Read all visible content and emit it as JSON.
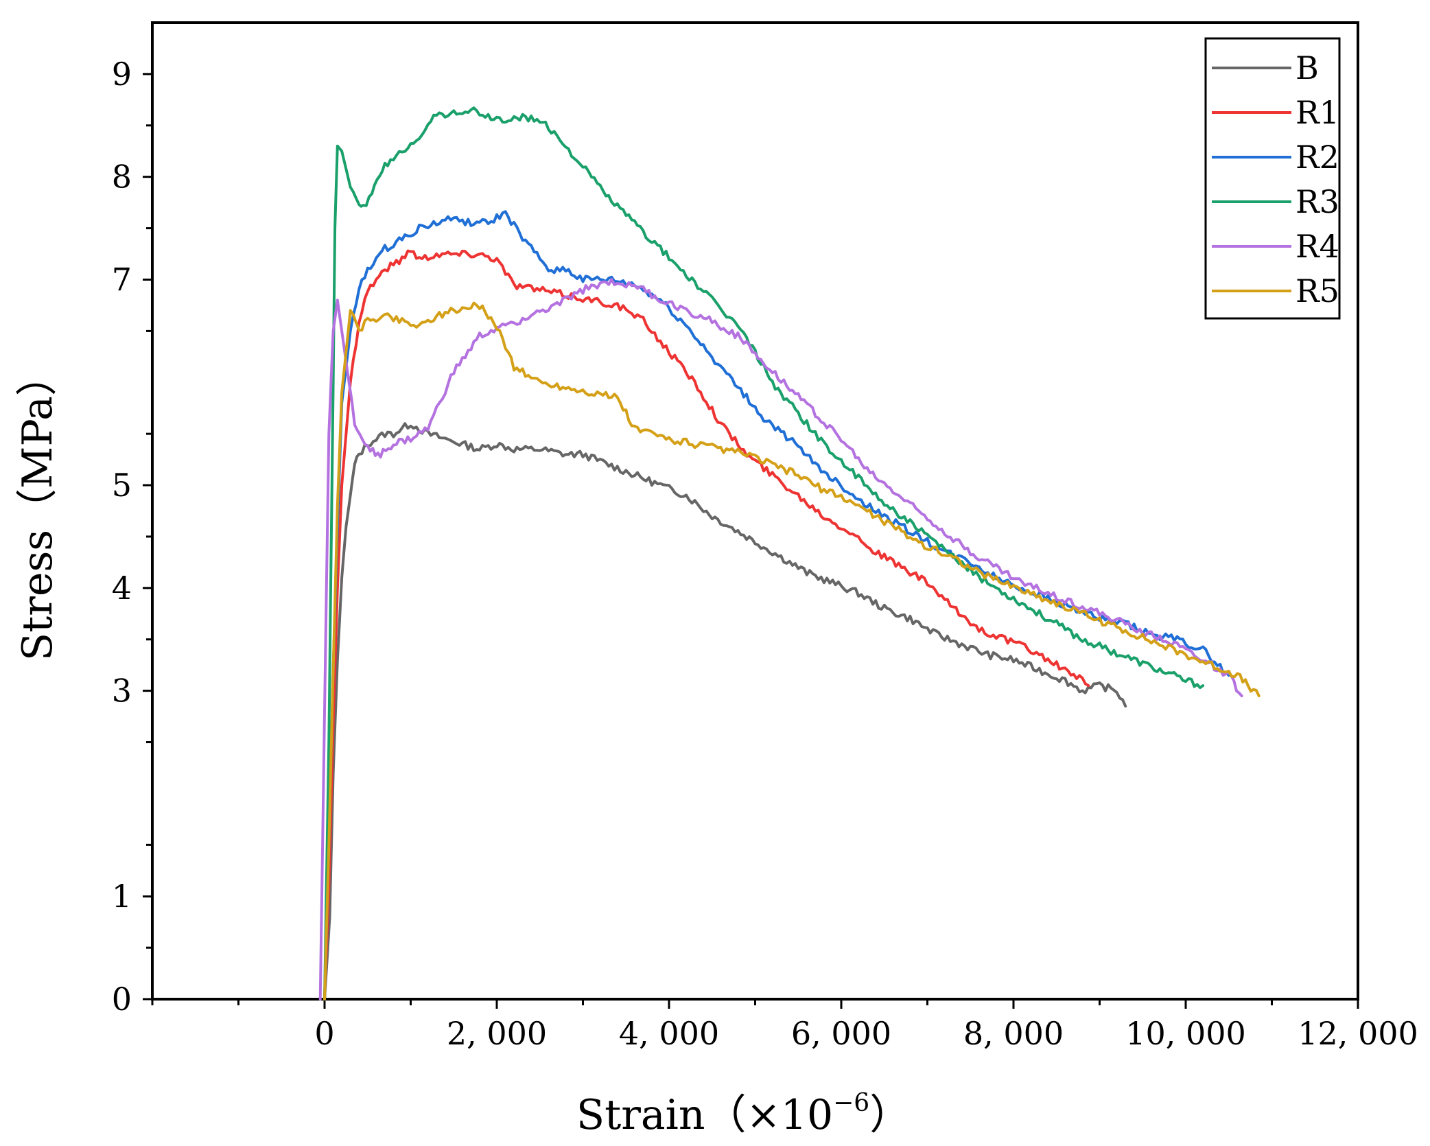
{
  "chart_data": {
    "type": "line",
    "title": "",
    "xlabel_main": "Strain",
    "xlabel_unit": "（×10",
    "xlabel_exp": "−6",
    "xlabel_close": "）",
    "ylabel": "Stress（MPa）",
    "xlim": [
      -2000,
      12000
    ],
    "ylim": [
      0,
      9.5
    ],
    "x_ticks": [
      0,
      2000,
      4000,
      6000,
      8000,
      10000,
      12000
    ],
    "x_tick_labels": [
      "0",
      "2, 000",
      "4, 000",
      "6, 000",
      "8, 000",
      "10, 000",
      "12, 000"
    ],
    "y_ticks": [
      0,
      1,
      3,
      4,
      5,
      7,
      8,
      9
    ],
    "y_tick_labels": [
      "0",
      "1",
      "3",
      "4",
      "5",
      "7",
      "8",
      "9"
    ],
    "legend_position": "top-right",
    "grid": false,
    "series": [
      {
        "name": "B",
        "color": "#666666",
        "x": [
          0,
          60,
          100,
          150,
          200,
          250,
          300,
          350,
          400,
          500,
          600,
          700,
          800,
          900,
          1000,
          1200,
          1400,
          1600,
          1800,
          2000,
          2200,
          2500,
          2800,
          3000,
          3300,
          3600,
          3900,
          4200,
          4500,
          4800,
          5000,
          5300,
          5600,
          5900,
          6200,
          6500,
          6800,
          7100,
          7400,
          7700,
          8000,
          8300,
          8600,
          8800,
          9000,
          9200,
          9300
        ],
        "y": [
          0,
          0.8,
          2.2,
          3.3,
          4.1,
          4.6,
          4.9,
          5.2,
          5.3,
          5.4,
          5.45,
          5.5,
          5.5,
          5.55,
          5.6,
          5.5,
          5.45,
          5.4,
          5.35,
          5.4,
          5.35,
          5.35,
          5.3,
          5.3,
          5.2,
          5.1,
          5.0,
          4.9,
          4.7,
          4.55,
          4.45,
          4.3,
          4.15,
          4.05,
          3.95,
          3.8,
          3.7,
          3.55,
          3.45,
          3.35,
          3.3,
          3.2,
          3.1,
          3.0,
          3.05,
          3.0,
          2.85
        ]
      },
      {
        "name": "R1",
        "color": "#ee3333",
        "x": [
          0,
          50,
          100,
          150,
          200,
          300,
          400,
          500,
          700,
          900,
          1000,
          1100,
          1300,
          1500,
          1800,
          2000,
          2200,
          2500,
          2800,
          3100,
          3400,
          3700,
          4000,
          4300,
          4600,
          4900,
          5200,
          5500,
          5800,
          6100,
          6400,
          6700,
          7000,
          7300,
          7600,
          7900,
          8200,
          8500,
          8800,
          8870
        ],
        "y": [
          0,
          1.1,
          2.7,
          4.0,
          5.0,
          6.0,
          6.6,
          6.9,
          7.1,
          7.2,
          7.3,
          7.2,
          7.25,
          7.25,
          7.25,
          7.2,
          6.95,
          6.9,
          6.85,
          6.8,
          6.75,
          6.6,
          6.3,
          6.0,
          5.6,
          5.3,
          5.1,
          4.9,
          4.7,
          4.55,
          4.35,
          4.2,
          4.05,
          3.8,
          3.6,
          3.5,
          3.4,
          3.25,
          3.1,
          3.05
        ]
      },
      {
        "name": "R2",
        "color": "#1f6fd6",
        "x": [
          0,
          50,
          100,
          150,
          200,
          300,
          400,
          500,
          700,
          900,
          1100,
          1300,
          1500,
          1700,
          1900,
          2100,
          2300,
          2500,
          2600,
          2800,
          3000,
          3300,
          3600,
          3900,
          4200,
          4500,
          4800,
          5100,
          5400,
          5700,
          6000,
          6300,
          6600,
          6900,
          7200,
          7500,
          7800,
          8100,
          8400,
          8700,
          9000,
          9300,
          9600,
          9900,
          10200,
          10500
        ],
        "y": [
          0,
          1.5,
          3.2,
          4.6,
          5.8,
          6.5,
          6.9,
          7.1,
          7.3,
          7.4,
          7.5,
          7.55,
          7.6,
          7.55,
          7.55,
          7.65,
          7.4,
          7.2,
          7.1,
          7.1,
          7.0,
          7.0,
          6.95,
          6.8,
          6.55,
          6.25,
          5.95,
          5.65,
          5.45,
          5.2,
          5.0,
          4.8,
          4.65,
          4.5,
          4.35,
          4.25,
          4.1,
          4.0,
          3.9,
          3.8,
          3.7,
          3.65,
          3.55,
          3.5,
          3.4,
          3.15
        ]
      },
      {
        "name": "R3",
        "color": "#1aa06a",
        "x": [
          0,
          50,
          100,
          120,
          150,
          200,
          300,
          400,
          450,
          550,
          700,
          900,
          1100,
          1300,
          1500,
          1700,
          1900,
          2100,
          2300,
          2500,
          2700,
          2900,
          3100,
          3300,
          3600,
          3900,
          4200,
          4500,
          4800,
          5000,
          5200,
          5500,
          5800,
          6100,
          6400,
          6700,
          7000,
          7300,
          7600,
          7900,
          8200,
          8500,
          8800,
          9100,
          9400,
          9700,
          10000,
          10200
        ],
        "y": [
          0,
          2.5,
          6.0,
          7.5,
          8.3,
          8.25,
          7.9,
          7.7,
          7.7,
          7.85,
          8.1,
          8.25,
          8.4,
          8.6,
          8.62,
          8.65,
          8.58,
          8.55,
          8.58,
          8.55,
          8.4,
          8.2,
          8.0,
          7.8,
          7.55,
          7.3,
          7.05,
          6.8,
          6.55,
          6.3,
          6.0,
          5.7,
          5.4,
          5.15,
          4.9,
          4.7,
          4.5,
          4.3,
          4.1,
          3.95,
          3.8,
          3.65,
          3.5,
          3.4,
          3.3,
          3.2,
          3.1,
          3.05
        ]
      },
      {
        "name": "R4",
        "color": "#b472e0",
        "x": [
          -50,
          0,
          50,
          100,
          150,
          250,
          350,
          500,
          650,
          800,
          1000,
          1200,
          1500,
          1800,
          2100,
          2400,
          2700,
          3000,
          3300,
          3600,
          3900,
          4200,
          4500,
          4800,
          5100,
          5400,
          5700,
          6000,
          6300,
          6600,
          6900,
          7200,
          7500,
          7800,
          8100,
          8400,
          8700,
          9000,
          9300,
          9600,
          9900,
          10200,
          10500,
          10650
        ],
        "y": [
          0,
          2.8,
          5.5,
          6.5,
          6.8,
          6.2,
          5.6,
          5.35,
          5.3,
          5.4,
          5.45,
          5.55,
          6.1,
          6.45,
          6.55,
          6.65,
          6.75,
          6.9,
          6.98,
          6.95,
          6.8,
          6.7,
          6.6,
          6.45,
          6.2,
          5.95,
          5.7,
          5.45,
          5.15,
          4.95,
          4.75,
          4.55,
          4.35,
          4.2,
          4.05,
          3.95,
          3.85,
          3.75,
          3.65,
          3.55,
          3.45,
          3.3,
          3.15,
          2.95
        ]
      },
      {
        "name": "R5",
        "color": "#d4a017",
        "x": [
          0,
          50,
          100,
          150,
          200,
          300,
          400,
          500,
          700,
          900,
          1100,
          1300,
          1500,
          1800,
          2000,
          2200,
          2500,
          2800,
          3100,
          3400,
          3600,
          3800,
          4000,
          4300,
          4600,
          4900,
          5200,
          5500,
          5800,
          6100,
          6400,
          6700,
          7000,
          7300,
          7600,
          7900,
          8200,
          8500,
          8800,
          9100,
          9400,
          9700,
          10000,
          10300,
          10600,
          10850
        ],
        "y": [
          0,
          1.5,
          3.2,
          4.8,
          5.9,
          6.7,
          6.5,
          6.6,
          6.65,
          6.6,
          6.55,
          6.65,
          6.7,
          6.75,
          6.55,
          6.15,
          6.0,
          5.95,
          5.9,
          5.85,
          5.55,
          5.5,
          5.45,
          5.4,
          5.35,
          5.3,
          5.2,
          5.1,
          4.95,
          4.85,
          4.7,
          4.55,
          4.4,
          4.3,
          4.15,
          4.05,
          3.95,
          3.85,
          3.75,
          3.65,
          3.55,
          3.45,
          3.35,
          3.25,
          3.15,
          2.95
        ]
      }
    ]
  }
}
